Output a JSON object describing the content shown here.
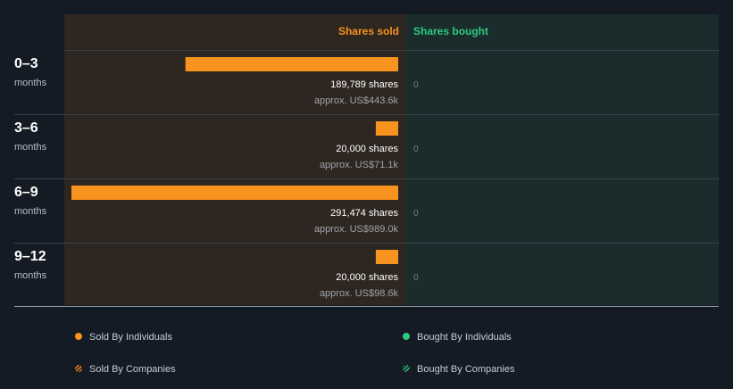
{
  "chart_data": {
    "type": "bar",
    "orientation": "horizontal",
    "headers": {
      "sold": "Shares sold",
      "bought": "Shares bought"
    },
    "colors": {
      "sold_bar": "#f7931e",
      "sold_panel": "#2e2620",
      "bought_panel": "#1b2c2c",
      "bought_accent": "#2dc97e",
      "background": "#151b24"
    },
    "xlim": [
      0,
      291474
    ],
    "periods": [
      {
        "range": "0–3",
        "unit": "months",
        "sold_shares": 189789,
        "sold_label": "189,789 shares",
        "sold_value": "approx. US$443.6k",
        "bought_shares": 0,
        "bought_label": "0"
      },
      {
        "range": "3–6",
        "unit": "months",
        "sold_shares": 20000,
        "sold_label": "20,000 shares",
        "sold_value": "approx. US$71.1k",
        "bought_shares": 0,
        "bought_label": "0"
      },
      {
        "range": "6–9",
        "unit": "months",
        "sold_shares": 291474,
        "sold_label": "291,474 shares",
        "sold_value": "approx. US$989.0k",
        "bought_shares": 0,
        "bought_label": "0"
      },
      {
        "range": "9–12",
        "unit": "months",
        "sold_shares": 20000,
        "sold_label": "20,000 shares",
        "sold_value": "approx. US$98.6k",
        "bought_shares": 0,
        "bought_label": "0"
      }
    ],
    "legend": [
      {
        "label": "Sold By Individuals",
        "marker": "dot",
        "color": "#f7931e"
      },
      {
        "label": "Bought By Individuals",
        "marker": "dot",
        "color": "#2dc97e"
      },
      {
        "label": "Sold By Companies",
        "marker": "hatch",
        "color": "#f7931e"
      },
      {
        "label": "Bought By Companies",
        "marker": "hatch",
        "color": "#2dc97e"
      }
    ]
  }
}
